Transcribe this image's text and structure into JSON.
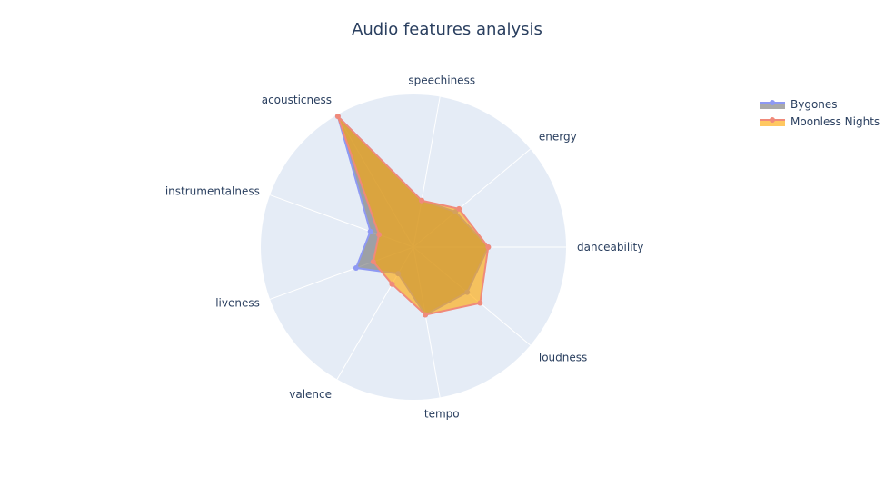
{
  "chart_data": {
    "type": "radar",
    "title": "Audio features analysis",
    "axes": [
      "danceability",
      "energy",
      "speechiness",
      "acousticness",
      "instrumentalness",
      "liveness",
      "valence",
      "tempo",
      "loudness"
    ],
    "range": [
      0,
      1
    ],
    "grid": true,
    "legend_position": "top-right",
    "series": [
      {
        "name": "Bygones",
        "values": [
          0.49,
          0.36,
          0.31,
          0.99,
          0.3,
          0.4,
          0.2,
          0.45,
          0.46
        ],
        "color": "#636efa",
        "fill": "rgba(99,99,99,0.55)",
        "line_color": "#8e99f3"
      },
      {
        "name": "Moonless Nights",
        "values": [
          0.49,
          0.39,
          0.31,
          0.99,
          0.24,
          0.28,
          0.28,
          0.45,
          0.57
        ],
        "color": "#ef553b",
        "fill": "rgba(255,166,0,0.62)",
        "line_color": "#f08a7a"
      }
    ]
  }
}
